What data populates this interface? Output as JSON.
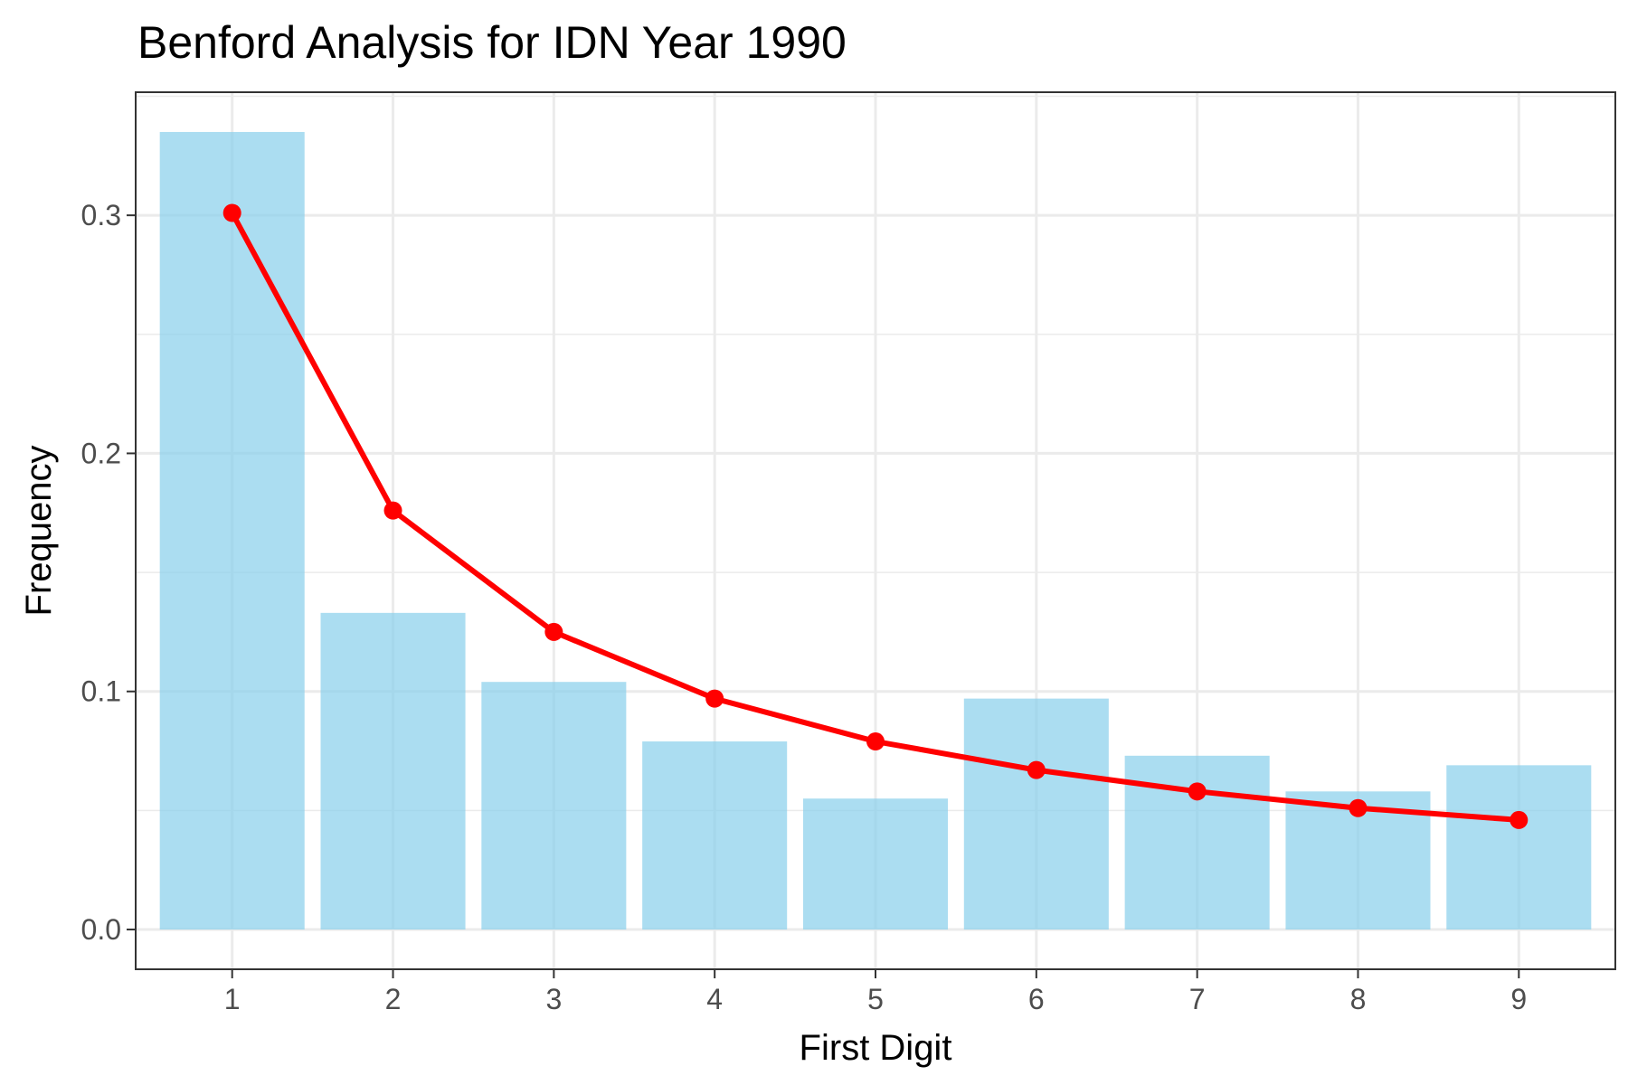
{
  "chart_data": {
    "type": "bar",
    "title": "Benford Analysis for IDN Year 1990",
    "xlabel": "First Digit",
    "ylabel": "Frequency",
    "categories": [
      "1",
      "2",
      "3",
      "4",
      "5",
      "6",
      "7",
      "8",
      "9"
    ],
    "series": [
      {
        "type": "bar",
        "values": [
          0.335,
          0.133,
          0.104,
          0.079,
          0.055,
          0.097,
          0.073,
          0.058,
          0.069
        ],
        "color": "#87CEEB"
      },
      {
        "type": "line",
        "values": [
          0.301,
          0.176,
          0.125,
          0.097,
          0.079,
          0.067,
          0.058,
          0.051,
          0.046
        ],
        "color": "#FF0000"
      }
    ],
    "ylim": [
      -0.0167,
      0.3517
    ],
    "y_ticks": [
      0.0,
      0.1,
      0.2,
      0.3
    ],
    "y_tick_labels": [
      "0.0",
      "0.1",
      "0.2",
      "0.3"
    ],
    "grid": true,
    "legend": "none",
    "colors": {
      "bar": "#87CEEB",
      "line": "#FF0000",
      "grid": "#EBEBEB",
      "panel_border": "#333333",
      "background": "#FFFFFF"
    }
  }
}
